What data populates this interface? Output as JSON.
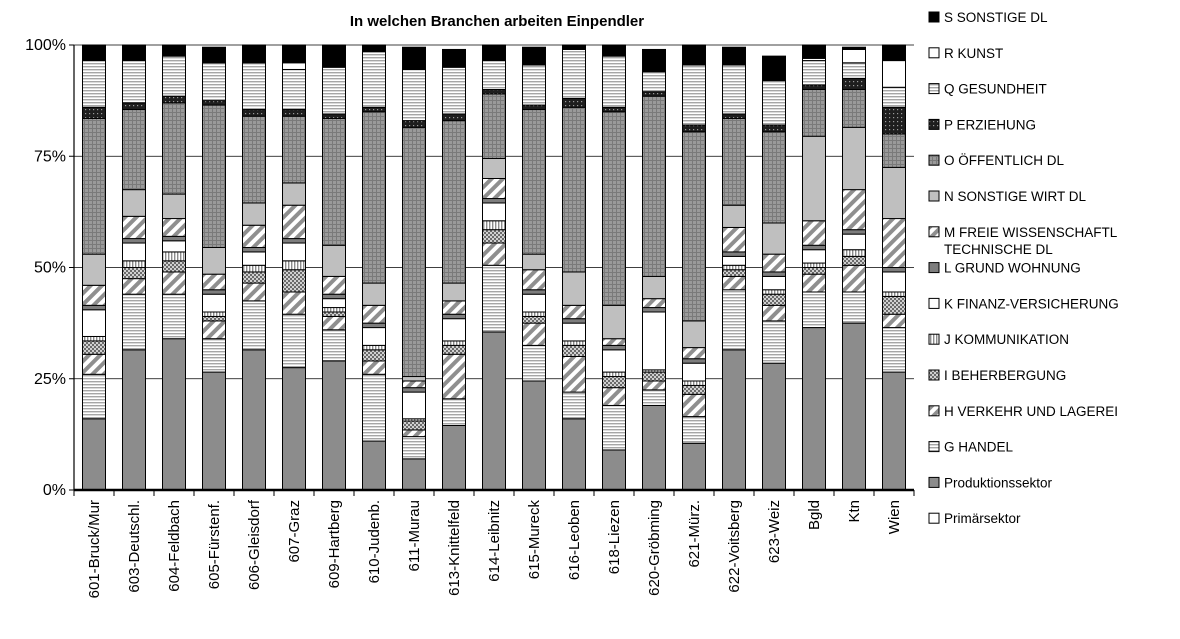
{
  "chart_data": {
    "type": "bar",
    "stacked": true,
    "title": "In welchen Branchen arbeiten Einpendler",
    "xlabel": "",
    "ylabel": "",
    "ylim": [
      0,
      1
    ],
    "yticks": [
      {
        "value": 0,
        "label": "0%"
      },
      {
        "value": 0.25,
        "label": "25%"
      },
      {
        "value": 0.5,
        "label": "50%"
      },
      {
        "value": 0.75,
        "label": "75%"
      },
      {
        "value": 1,
        "label": "100%"
      }
    ],
    "grid": true,
    "legend_position": "right",
    "categories": [
      "601-Bruck/Mur",
      "603-Deutschl.",
      "604-Feldbach",
      "605-Fürstenf.",
      "606-Gleisdorf",
      "607-Graz",
      "609-Hartberg",
      "610-Judenb.",
      "611-Murau",
      "613-Knittelfeld",
      "614-Leibnitz",
      "615-Mureck",
      "616-Leoben",
      "618-Liezen",
      "620-Gröbming",
      "621-Mürz.",
      "622-Voitsberg",
      "623-Weiz",
      "Bgld",
      "Ktn",
      "Wien"
    ],
    "series": [
      {
        "name": "Primärsektor",
        "pattern": "white",
        "values": [
          0,
          0,
          0,
          0,
          0,
          0,
          0,
          0,
          0,
          0,
          0,
          0,
          0,
          0,
          0,
          0,
          0,
          0,
          0,
          0,
          0
        ]
      },
      {
        "name": "Produktionssektor",
        "pattern": "grey",
        "values": [
          0.16,
          0.315,
          0.34,
          0.265,
          0.315,
          0.275,
          0.29,
          0.11,
          0.07,
          0.145,
          0.355,
          0.245,
          0.16,
          0.09,
          0.19,
          0.105,
          0.315,
          0.285,
          0.365,
          0.375,
          0.265
        ]
      },
      {
        "name": "G HANDEL",
        "pattern": "hlines",
        "values": [
          0.1,
          0.125,
          0.1,
          0.075,
          0.11,
          0.12,
          0.07,
          0.15,
          0.05,
          0.06,
          0.15,
          0.08,
          0.06,
          0.1,
          0.035,
          0.06,
          0.135,
          0.095,
          0.08,
          0.07,
          0.1
        ]
      },
      {
        "name": "H VERKEHR UND LAGEREI",
        "pattern": "diag",
        "values": [
          0.045,
          0.035,
          0.05,
          0.04,
          0.04,
          0.05,
          0.03,
          0.03,
          0.015,
          0.1,
          0.05,
          0.05,
          0.08,
          0.04,
          0.02,
          0.05,
          0.03,
          0.035,
          0.04,
          0.06,
          0.03
        ]
      },
      {
        "name": "I BEHERBERGUNG",
        "pattern": "checks",
        "values": [
          0.03,
          0.025,
          0.025,
          0.01,
          0.025,
          0.05,
          0.01,
          0.025,
          0.02,
          0.02,
          0.03,
          0.015,
          0.025,
          0.025,
          0.02,
          0.02,
          0.015,
          0.025,
          0.015,
          0.02,
          0.04
        ]
      },
      {
        "name": "J KOMMUNIKATION",
        "pattern": "vlines",
        "values": [
          0.01,
          0.015,
          0.02,
          0.01,
          0.015,
          0.02,
          0.01,
          0.01,
          0.005,
          0.01,
          0.02,
          0.01,
          0.01,
          0.01,
          0.005,
          0.01,
          0.01,
          0.01,
          0.01,
          0.015,
          0.01
        ]
      },
      {
        "name": "K FINANZ-VERSICHERUNG",
        "pattern": "white",
        "values": [
          0.06,
          0.04,
          0.025,
          0.04,
          0.03,
          0.04,
          0.02,
          0.04,
          0.06,
          0.05,
          0.04,
          0.04,
          0.04,
          0.05,
          0.13,
          0.04,
          0.02,
          0.03,
          0.03,
          0.035,
          0.045
        ]
      },
      {
        "name": "L GRUND WOHNUNG",
        "pattern": "dark",
        "values": [
          0.01,
          0.01,
          0.01,
          0.01,
          0.01,
          0.01,
          0.01,
          0.01,
          0.01,
          0.01,
          0.01,
          0.01,
          0.01,
          0.01,
          0.01,
          0.01,
          0.01,
          0.01,
          0.01,
          0.01,
          0.01
        ]
      },
      {
        "name": "M   FREIE WISSENSCHAFTL TECHNISCHE DL",
        "pattern": "diag",
        "values": [
          0.045,
          0.05,
          0.04,
          0.035,
          0.05,
          0.075,
          0.04,
          0.04,
          0.015,
          0.03,
          0.045,
          0.045,
          0.03,
          0.015,
          0.02,
          0.025,
          0.055,
          0.04,
          0.055,
          0.09,
          0.11
        ]
      },
      {
        "name": "N  SONSTIGE WIRT DL",
        "pattern": "light",
        "values": [
          0.07,
          0.06,
          0.055,
          0.06,
          0.05,
          0.05,
          0.07,
          0.05,
          0.01,
          0.04,
          0.045,
          0.035,
          0.075,
          0.075,
          0.05,
          0.06,
          0.05,
          0.07,
          0.19,
          0.14,
          0.115
        ]
      },
      {
        "name": "O  ÖFFENTLICH DL",
        "pattern": "grid",
        "values": [
          0.305,
          0.18,
          0.205,
          0.32,
          0.195,
          0.15,
          0.285,
          0.385,
          0.56,
          0.365,
          0.145,
          0.325,
          0.37,
          0.435,
          0.405,
          0.425,
          0.195,
          0.205,
          0.105,
          0.085,
          0.075
        ]
      },
      {
        "name": "P  ERZIEHUNG",
        "pattern": "dots",
        "values": [
          0.025,
          0.015,
          0.015,
          0.01,
          0.015,
          0.015,
          0.01,
          0.01,
          0.015,
          0.015,
          0.01,
          0.01,
          0.02,
          0.01,
          0.01,
          0.015,
          0.01,
          0.015,
          0.01,
          0.025,
          0.06
        ]
      },
      {
        "name": "Q  GESUNDHEIT",
        "pattern": "hlines",
        "values": [
          0.105,
          0.095,
          0.09,
          0.085,
          0.105,
          0.09,
          0.105,
          0.125,
          0.115,
          0.105,
          0.065,
          0.09,
          0.11,
          0.115,
          0.045,
          0.135,
          0.11,
          0.1,
          0.055,
          0.035,
          0.045
        ]
      },
      {
        "name": "R  KUNST",
        "pattern": "white",
        "values": [
          0,
          0,
          0,
          0,
          0,
          0.015,
          0,
          0,
          0,
          0,
          0,
          0,
          0,
          0,
          0,
          0,
          0,
          0,
          0.005,
          0.03,
          0.06
        ]
      },
      {
        "name": "S SONSTIGE DL",
        "pattern": "black",
        "values": [
          0.04,
          0.035,
          0.035,
          0.035,
          0.04,
          0.045,
          0.05,
          0.04,
          0.05,
          0.04,
          0.04,
          0.04,
          0.035,
          0.03,
          0.05,
          0.045,
          0.04,
          0.055,
          0.035,
          0.005,
          0.035
        ]
      }
    ]
  }
}
